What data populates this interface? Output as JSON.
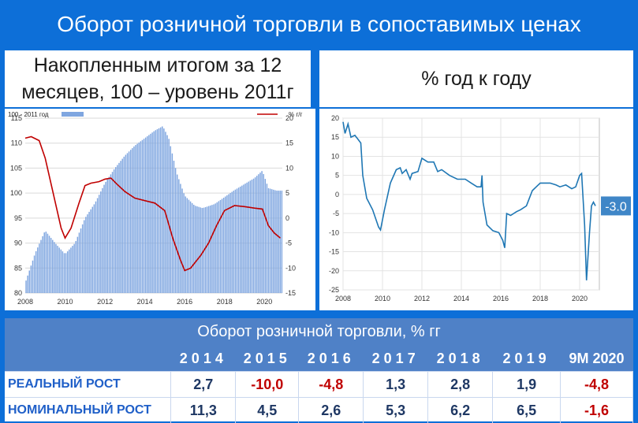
{
  "header": {
    "title": "Оборот розничной торговли в сопоставимых ценах",
    "left_subtitle": "Накопленным итогом за 12 месяцев, 100 – уровень 2011г",
    "right_subtitle": "% год к году"
  },
  "chart_data": [
    {
      "type": "bar+line",
      "legend": [
        {
          "name": "100 - 2011 год",
          "type": "bar",
          "color": "#7fa6e0"
        },
        {
          "name": "% г/г",
          "type": "line",
          "color": "#c00000"
        }
      ],
      "left_axis": {
        "ylim": [
          80,
          115
        ],
        "ticks": [
          80,
          85,
          90,
          95,
          100,
          105,
          110,
          115
        ]
      },
      "right_axis": {
        "ylim": [
          -15,
          20
        ],
        "ticks": [
          -15,
          -10,
          -5,
          0,
          5,
          10,
          15,
          20
        ]
      },
      "x_ticks": [
        "2008",
        "2010",
        "2012",
        "2014",
        "2016",
        "2018",
        "2020"
      ],
      "xlim": [
        2008,
        2020.9
      ],
      "bar_series": {
        "name": "100 - 2011 год",
        "points": [
          [
            2008.0,
            82
          ],
          [
            2008.5,
            88
          ],
          [
            2009.0,
            92.5
          ],
          [
            2009.5,
            90
          ],
          [
            2010.0,
            87.8
          ],
          [
            2010.5,
            90
          ],
          [
            2011.0,
            95
          ],
          [
            2011.5,
            98
          ],
          [
            2012.0,
            102
          ],
          [
            2012.5,
            105
          ],
          [
            2013.0,
            107.5
          ],
          [
            2013.5,
            109.5
          ],
          [
            2014.0,
            111
          ],
          [
            2014.5,
            112.5
          ],
          [
            2014.9,
            113.4
          ],
          [
            2015.2,
            111
          ],
          [
            2015.6,
            104
          ],
          [
            2016.0,
            99.5
          ],
          [
            2016.5,
            97.5
          ],
          [
            2016.9,
            97
          ],
          [
            2017.5,
            97.8
          ],
          [
            2018.0,
            99.2
          ],
          [
            2018.5,
            100.6
          ],
          [
            2019.0,
            101.8
          ],
          [
            2019.5,
            103
          ],
          [
            2019.9,
            104.5
          ],
          [
            2020.2,
            101
          ],
          [
            2020.6,
            100.5
          ],
          [
            2020.8,
            100.5
          ]
        ]
      },
      "line_series": {
        "name": "% г/г",
        "points": [
          [
            2008.0,
            16
          ],
          [
            2008.3,
            16.3
          ],
          [
            2008.7,
            15.5
          ],
          [
            2009.0,
            12
          ],
          [
            2009.4,
            5
          ],
          [
            2009.8,
            -2
          ],
          [
            2010.0,
            -4
          ],
          [
            2010.3,
            -2
          ],
          [
            2010.7,
            3
          ],
          [
            2011.0,
            6.5
          ],
          [
            2011.3,
            7
          ],
          [
            2011.7,
            7.3
          ],
          [
            2012.0,
            7.8
          ],
          [
            2012.3,
            8
          ],
          [
            2012.6,
            6.8
          ],
          [
            2013.0,
            5.3
          ],
          [
            2013.5,
            4
          ],
          [
            2014.0,
            3.5
          ],
          [
            2014.5,
            3
          ],
          [
            2015.0,
            1.5
          ],
          [
            2015.4,
            -4
          ],
          [
            2015.8,
            -8.5
          ],
          [
            2016.0,
            -10.5
          ],
          [
            2016.3,
            -10
          ],
          [
            2016.8,
            -7.5
          ],
          [
            2017.2,
            -5
          ],
          [
            2017.6,
            -1.5
          ],
          [
            2018.0,
            1.5
          ],
          [
            2018.5,
            2.5
          ],
          [
            2019.0,
            2.3
          ],
          [
            2019.5,
            2
          ],
          [
            2019.9,
            1.8
          ],
          [
            2020.2,
            -1.5
          ],
          [
            2020.5,
            -3
          ],
          [
            2020.8,
            -4
          ]
        ]
      }
    },
    {
      "type": "line",
      "yticks": [
        -25,
        -20,
        -15,
        -10,
        -5,
        0,
        5,
        10,
        15,
        20
      ],
      "ylim": [
        -25,
        20
      ],
      "x_ticks": [
        "2008",
        "2010",
        "2012",
        "2014",
        "2016",
        "2018",
        "2020"
      ],
      "xlim": [
        2008,
        2021
      ],
      "end_label": "-3.0",
      "series": [
        {
          "color": "#1f77b4",
          "points": [
            [
              2008.0,
              19
            ],
            [
              2008.1,
              16
            ],
            [
              2008.25,
              18.5
            ],
            [
              2008.4,
              15
            ],
            [
              2008.6,
              15.5
            ],
            [
              2008.75,
              14.5
            ],
            [
              2008.9,
              13.5
            ],
            [
              2009.0,
              5
            ],
            [
              2009.2,
              -1
            ],
            [
              2009.5,
              -4
            ],
            [
              2009.8,
              -8.5
            ],
            [
              2009.9,
              -9.3
            ],
            [
              2010.1,
              -4
            ],
            [
              2010.4,
              3
            ],
            [
              2010.7,
              6.5
            ],
            [
              2010.9,
              7
            ],
            [
              2011.0,
              5.5
            ],
            [
              2011.2,
              6.5
            ],
            [
              2011.4,
              4
            ],
            [
              2011.5,
              5.5
            ],
            [
              2011.8,
              6
            ],
            [
              2012.0,
              9.5
            ],
            [
              2012.3,
              8.5
            ],
            [
              2012.6,
              8.5
            ],
            [
              2012.8,
              6
            ],
            [
              2013.0,
              6.5
            ],
            [
              2013.4,
              5
            ],
            [
              2013.8,
              4
            ],
            [
              2014.2,
              4
            ],
            [
              2014.5,
              3
            ],
            [
              2014.8,
              2
            ],
            [
              2015.0,
              2
            ],
            [
              2015.05,
              5
            ],
            [
              2015.1,
              -2
            ],
            [
              2015.3,
              -8
            ],
            [
              2015.6,
              -9.5
            ],
            [
              2015.9,
              -10
            ],
            [
              2016.1,
              -12
            ],
            [
              2016.2,
              -14
            ],
            [
              2016.3,
              -5
            ],
            [
              2016.5,
              -5.5
            ],
            [
              2016.8,
              -4.5
            ],
            [
              2017.0,
              -4
            ],
            [
              2017.3,
              -3
            ],
            [
              2017.6,
              1
            ],
            [
              2017.8,
              2
            ],
            [
              2018.0,
              3
            ],
            [
              2018.5,
              3
            ],
            [
              2018.8,
              2.5
            ],
            [
              2019.0,
              2
            ],
            [
              2019.3,
              2.5
            ],
            [
              2019.6,
              1.5
            ],
            [
              2019.8,
              2
            ],
            [
              2020.0,
              5
            ],
            [
              2020.1,
              5.5
            ],
            [
              2020.25,
              -8
            ],
            [
              2020.35,
              -22.5
            ],
            [
              2020.5,
              -10
            ],
            [
              2020.6,
              -3
            ],
            [
              2020.7,
              -2
            ],
            [
              2020.8,
              -3
            ]
          ]
        }
      ]
    }
  ],
  "table": {
    "title": "Оборот розничной торговли, % гг",
    "columns": [
      "2014",
      "2015",
      "2016",
      "2017",
      "2018",
      "2019",
      "9M 2020"
    ],
    "rows": [
      {
        "label": "РЕАЛЬНЫЙ РОСТ",
        "values": [
          "2,7",
          "-10,0",
          "-4,8",
          "1,3",
          "2,8",
          "1,9",
          "-4,8"
        ]
      },
      {
        "label": "НОМИНАЛЬНЫЙ РОСТ",
        "values": [
          "11,3",
          "4,5",
          "2,6",
          "5,3",
          "6,2",
          "6,5",
          "-1,6"
        ]
      }
    ]
  }
}
